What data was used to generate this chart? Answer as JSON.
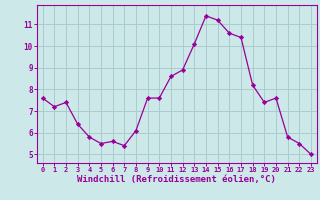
{
  "x": [
    0,
    1,
    2,
    3,
    4,
    5,
    6,
    7,
    8,
    9,
    10,
    11,
    12,
    13,
    14,
    15,
    16,
    17,
    18,
    19,
    20,
    21,
    22,
    23
  ],
  "y": [
    7.6,
    7.2,
    7.4,
    6.4,
    5.8,
    5.5,
    5.6,
    5.4,
    6.1,
    7.6,
    7.6,
    8.6,
    8.9,
    10.1,
    11.4,
    11.2,
    10.6,
    10.4,
    8.2,
    7.4,
    7.6,
    5.8,
    5.5,
    5.0
  ],
  "line_color": "#990099",
  "marker": "D",
  "marker_size": 2.2,
  "bg_color": "#cce8e8",
  "grid_color": "#aacccc",
  "axis_color": "#990099",
  "tick_color": "#990099",
  "xlabel": "Windchill (Refroidissement éolien,°C)",
  "xlabel_fontsize": 6.5,
  "ylabel_ticks": [
    5,
    6,
    7,
    8,
    9,
    10,
    11
  ],
  "xlim": [
    -0.5,
    23.5
  ],
  "ylim": [
    4.6,
    11.9
  ],
  "xticks": [
    0,
    1,
    2,
    3,
    4,
    5,
    6,
    7,
    8,
    9,
    10,
    11,
    12,
    13,
    14,
    15,
    16,
    17,
    18,
    19,
    20,
    21,
    22,
    23
  ]
}
